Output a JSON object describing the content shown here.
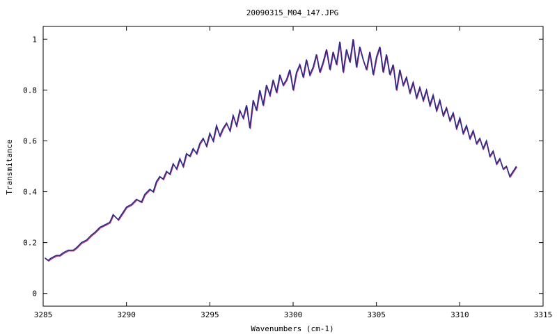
{
  "chart_data": {
    "type": "line",
    "title": "20090315_M04_147.JPG",
    "xlabel": "Wavenumbers (cm-1)",
    "ylabel": "Transmitance",
    "xlim": [
      3285,
      3315
    ],
    "ylim": [
      -0.05,
      1.05
    ],
    "xticks": [
      3285,
      3290,
      3295,
      3300,
      3305,
      3310,
      3315
    ],
    "xtick_labels": [
      "3285",
      "3290",
      "3295",
      "3300",
      "3305",
      "3310",
      "3315"
    ],
    "yticks": [
      0,
      0.2,
      0.4,
      0.6,
      0.8,
      1
    ],
    "ytick_labels": [
      "0",
      "0.2",
      "0.4",
      "0.6",
      "0.8",
      "1"
    ],
    "grid": false,
    "legend": "none",
    "colors": {
      "series_main": "#2b2a86",
      "series_shadow": "#b0306a",
      "axis": "#000000"
    },
    "series": [
      {
        "x": [
          3285.1,
          3285.3,
          3285.5,
          3285.8,
          3286.0,
          3286.2,
          3286.5,
          3286.8,
          3287.0,
          3287.3,
          3287.6,
          3287.9,
          3288.1,
          3288.4,
          3288.7,
          3289.0,
          3289.2,
          3289.5,
          3289.8,
          3290.0,
          3290.3,
          3290.6,
          3290.9,
          3291.1,
          3291.4,
          3291.6,
          3291.8,
          3292.0,
          3292.2,
          3292.4,
          3292.6,
          3292.8,
          3293.0,
          3293.2,
          3293.4,
          3293.6,
          3293.8,
          3294.0,
          3294.2,
          3294.4,
          3294.6,
          3294.8,
          3295.0,
          3295.2,
          3295.4,
          3295.6,
          3295.8,
          3296.0,
          3296.2,
          3296.4,
          3296.6,
          3296.8,
          3297.0,
          3297.2,
          3297.4,
          3297.6,
          3297.8,
          3298.0,
          3298.2,
          3298.4,
          3298.6,
          3298.8,
          3299.0,
          3299.2,
          3299.4,
          3299.6,
          3299.8,
          3300.0,
          3300.2,
          3300.4,
          3300.6,
          3300.8,
          3301.0,
          3301.2,
          3301.4,
          3301.6,
          3301.8,
          3302.0,
          3302.2,
          3302.4,
          3302.6,
          3302.8,
          3303.0,
          3303.2,
          3303.4,
          3303.6,
          3303.8,
          3304.0,
          3304.2,
          3304.4,
          3304.6,
          3304.8,
          3305.0,
          3305.2,
          3305.4,
          3305.6,
          3305.8,
          3306.0,
          3306.2,
          3306.4,
          3306.6,
          3306.8,
          3307.0,
          3307.2,
          3307.4,
          3307.6,
          3307.8,
          3308.0,
          3308.2,
          3308.4,
          3308.6,
          3308.8,
          3309.0,
          3309.2,
          3309.4,
          3309.6,
          3309.8,
          3310.0,
          3310.2,
          3310.4,
          3310.6,
          3310.8,
          3311.0,
          3311.2,
          3311.4,
          3311.6,
          3311.8,
          3312.0,
          3312.2,
          3312.4,
          3312.6,
          3312.8,
          3313.0,
          3313.2,
          3313.4
        ],
        "y": [
          0.14,
          0.13,
          0.14,
          0.15,
          0.15,
          0.16,
          0.17,
          0.17,
          0.18,
          0.2,
          0.21,
          0.23,
          0.24,
          0.26,
          0.27,
          0.28,
          0.31,
          0.29,
          0.32,
          0.34,
          0.35,
          0.37,
          0.36,
          0.39,
          0.41,
          0.4,
          0.44,
          0.46,
          0.45,
          0.48,
          0.47,
          0.51,
          0.49,
          0.53,
          0.5,
          0.55,
          0.54,
          0.57,
          0.55,
          0.59,
          0.61,
          0.58,
          0.63,
          0.6,
          0.66,
          0.62,
          0.65,
          0.67,
          0.64,
          0.7,
          0.66,
          0.72,
          0.69,
          0.74,
          0.65,
          0.76,
          0.72,
          0.8,
          0.74,
          0.82,
          0.78,
          0.84,
          0.79,
          0.86,
          0.82,
          0.84,
          0.88,
          0.8,
          0.87,
          0.9,
          0.85,
          0.92,
          0.86,
          0.89,
          0.94,
          0.87,
          0.91,
          0.96,
          0.88,
          0.95,
          0.9,
          0.99,
          0.87,
          0.96,
          0.91,
          1.0,
          0.89,
          0.97,
          0.92,
          0.88,
          0.95,
          0.86,
          0.93,
          0.97,
          0.87,
          0.94,
          0.86,
          0.9,
          0.8,
          0.88,
          0.82,
          0.85,
          0.79,
          0.83,
          0.77,
          0.81,
          0.76,
          0.8,
          0.74,
          0.78,
          0.72,
          0.76,
          0.7,
          0.73,
          0.68,
          0.71,
          0.65,
          0.69,
          0.63,
          0.66,
          0.61,
          0.64,
          0.59,
          0.61,
          0.57,
          0.6,
          0.54,
          0.56,
          0.51,
          0.53,
          0.49,
          0.5,
          0.46,
          0.48,
          0.5
        ]
      }
    ]
  }
}
